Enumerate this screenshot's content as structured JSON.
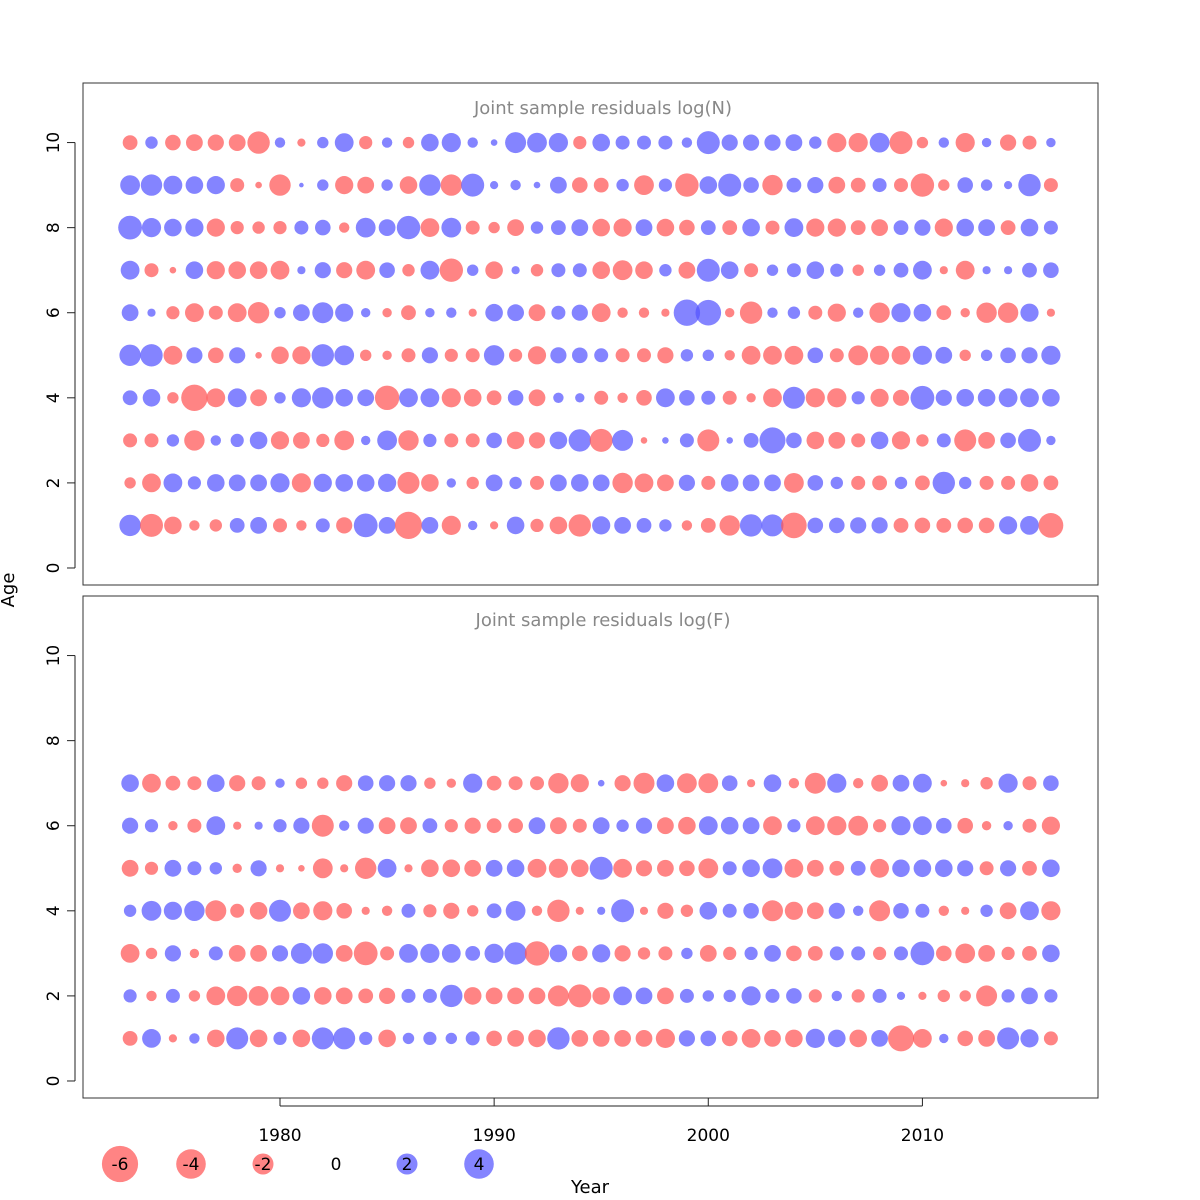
{
  "chart_data": {
    "type": "bubble",
    "xlabel": "Year",
    "ylabel": "Age",
    "x_ticks": [
      1980,
      1990,
      2000,
      2010
    ],
    "xlim": [
      1970.8,
      2018.2
    ],
    "y_ticks": [
      0,
      2,
      4,
      6,
      8,
      10
    ],
    "ylim": [
      -0.4,
      11.4
    ],
    "years": [
      1973,
      1974,
      1975,
      1976,
      1977,
      1978,
      1979,
      1980,
      1981,
      1982,
      1983,
      1984,
      1985,
      1986,
      1987,
      1988,
      1989,
      1990,
      1991,
      1992,
      1993,
      1994,
      1995,
      1996,
      1997,
      1998,
      1999,
      2000,
      2001,
      2002,
      2003,
      2004,
      2005,
      2006,
      2007,
      2008,
      2009,
      2010,
      2011,
      2012,
      2013,
      2014,
      2015,
      2016
    ],
    "colors": {
      "negative": "#ff5555",
      "positive": "#5555ff"
    },
    "legend": {
      "values": [
        -6,
        -4,
        -2,
        0,
        2,
        4
      ],
      "labels": [
        "-6",
        "-4",
        "-2",
        "0",
        "2",
        "4"
      ]
    },
    "panels": [
      {
        "title": "Joint sample residuals log(N)",
        "ages": [
          1,
          2,
          3,
          4,
          5,
          6,
          7,
          8,
          9,
          10
        ],
        "residuals": [
          [
            2.1,
            -2.4,
            -1.4,
            -0.5,
            -0.7,
            1.0,
            1.3,
            -0.9,
            -0.5,
            0.9,
            -1.2,
            2.6,
            1.3,
            -3.4,
            1.3,
            -1.7,
            0.4,
            -0.3,
            1.4,
            -0.8,
            -1.4,
            -2.3,
            1.5,
            1.3,
            1.0,
            0.7,
            -0.5,
            -1.0,
            -1.9,
            2.3,
            2.2,
            -3.0,
            1.1,
            1.1,
            1.2,
            1.2,
            -1.0,
            -1.1,
            -1.0,
            -1.1,
            -1.1,
            1.5,
            1.6,
            -2.8
          ],
          [
            -0.6,
            -1.6,
            1.6,
            0.8,
            1.4,
            1.3,
            1.3,
            1.7,
            -1.7,
            1.5,
            1.4,
            1.4,
            1.5,
            -2.2,
            -1.4,
            0.4,
            -0.7,
            1.3,
            0.7,
            -0.9,
            1.3,
            1.4,
            1.3,
            -1.9,
            -1.6,
            -1.3,
            1.2,
            -0.9,
            1.4,
            1.3,
            1.3,
            -1.8,
            1.1,
            0.7,
            -0.9,
            -1.0,
            0.7,
            -1.0,
            2.3,
            0.7,
            -0.9,
            -0.9,
            -1.4,
            -1.0
          ],
          [
            -0.9,
            -0.9,
            0.7,
            -1.9,
            0.5,
            0.8,
            1.4,
            -1.5,
            -1.3,
            -0.8,
            -1.8,
            0.4,
            1.8,
            -1.9,
            0.8,
            -0.9,
            -0.9,
            1.1,
            -1.4,
            -1.2,
            1.4,
            2.3,
            -2.4,
            2.0,
            -0.2,
            0.2,
            0.9,
            -2.2,
            0.2,
            1.0,
            3.1,
            1.1,
            -1.4,
            -1.3,
            -0.9,
            1.4,
            -1.5,
            -0.7,
            0.9,
            -2.2,
            -1.3,
            1.1,
            2.4,
            0.4
          ],
          [
            1.0,
            1.4,
            -0.6,
            -3.2,
            -1.6,
            1.6,
            -1.3,
            0.6,
            1.7,
            2.1,
            1.4,
            1.3,
            -2.7,
            1.6,
            1.6,
            -1.7,
            -1.4,
            -1.0,
            1.1,
            -1.3,
            0.5,
            0.4,
            -0.9,
            -0.5,
            -1.1,
            1.6,
            1.1,
            0.9,
            -0.9,
            -0.4,
            -1.6,
            2.2,
            -1.7,
            -1.7,
            0.8,
            -1.5,
            -1.2,
            2.6,
            1.2,
            1.4,
            1.4,
            1.6,
            1.6,
            1.4
          ],
          [
            2.1,
            2.3,
            -1.6,
            1.2,
            -1.1,
            1.2,
            -0.2,
            -1.4,
            -1.5,
            2.3,
            1.8,
            -0.6,
            -0.4,
            -0.9,
            1.2,
            -0.8,
            -0.9,
            1.9,
            -0.8,
            -1.5,
            1.2,
            1.1,
            0.9,
            -0.9,
            -0.9,
            -1.2,
            0.7,
            0.6,
            -0.5,
            -1.6,
            -1.6,
            -1.6,
            1.1,
            -0.9,
            -1.8,
            -1.7,
            -1.6,
            1.7,
            1.3,
            -0.6,
            0.6,
            1.1,
            1.2,
            1.7
          ],
          [
            1.3,
            0.3,
            -0.8,
            -1.6,
            -0.9,
            -1.6,
            -2.1,
            0.6,
            1.3,
            2.0,
            1.5,
            0.4,
            -0.4,
            -1.0,
            0.4,
            0.5,
            -0.3,
            1.4,
            1.3,
            -1.3,
            0.9,
            1.2,
            -1.6,
            -0.5,
            -0.5,
            -0.3,
            3.2,
            3.0,
            -0.4,
            -2.3,
            0.5,
            0.7,
            -0.9,
            -1.5,
            0.5,
            -1.9,
            1.7,
            1.4,
            -1.0,
            -0.4,
            -1.9,
            -1.9,
            1.5,
            -0.3
          ],
          [
            1.6,
            -0.9,
            -0.2,
            1.4,
            -1.5,
            -1.4,
            -1.4,
            -1.6,
            0.3,
            1.2,
            -1.2,
            -1.6,
            1.1,
            -0.7,
            1.6,
            -2.5,
            0.6,
            -1.4,
            0.3,
            -0.7,
            0.9,
            0.9,
            -1.4,
            -1.8,
            -1.4,
            0.7,
            -1.3,
            2.4,
            1.4,
            -0.9,
            0.6,
            0.9,
            1.4,
            0.8,
            -0.6,
            0.6,
            1.0,
            1.6,
            -0.3,
            -1.6,
            0.3,
            0.3,
            1.0,
            1.1
          ],
          [
            2.6,
            1.7,
            1.4,
            1.5,
            -1.5,
            -0.8,
            -0.7,
            -0.8,
            0.9,
            1.1,
            -0.5,
            1.8,
            1.3,
            2.5,
            -1.6,
            1.8,
            -0.9,
            -0.6,
            -1.3,
            0.7,
            1.0,
            1.3,
            -1.4,
            -1.5,
            1.3,
            -1.4,
            -1.1,
            1.0,
            -1.0,
            1.4,
            -0.9,
            1.6,
            -1.5,
            -1.5,
            -1.0,
            -1.3,
            1.0,
            1.2,
            -1.5,
            1.4,
            1.3,
            -1.0,
            1.4,
            0.9
          ],
          [
            1.8,
            2.1,
            1.6,
            1.4,
            1.5,
            -0.9,
            -0.2,
            -2.1,
            0.1,
            0.6,
            -1.5,
            -1.3,
            0.6,
            -1.4,
            2.1,
            -2.1,
            2.4,
            0.3,
            0.5,
            0.2,
            1.3,
            -1.1,
            -1.0,
            0.7,
            -1.8,
            0.8,
            -2.5,
            1.4,
            2.4,
            1.1,
            -1.9,
            1.0,
            1.2,
            -1.3,
            -1.0,
            0.9,
            -0.9,
            -2.5,
            -0.6,
            1.1,
            0.6,
            0.3,
            2.3,
            -0.9
          ],
          [
            -1.0,
            0.7,
            -1.1,
            -1.3,
            -1.2,
            -1.3,
            -2.3,
            0.5,
            -0.3,
            0.6,
            1.6,
            -0.8,
            0.5,
            -0.6,
            1.4,
            1.7,
            0.5,
            0.2,
            2.0,
            1.8,
            1.7,
            -0.8,
            1.4,
            0.9,
            0.9,
            0.9,
            0.5,
            2.4,
            1.2,
            1.2,
            1.2,
            1.3,
            0.7,
            -1.7,
            -1.7,
            1.8,
            -2.4,
            -0.6,
            0.5,
            -1.7,
            0.4,
            -1.2,
            -0.9,
            0.4
          ]
        ]
      },
      {
        "title": "Joint sample residuals log(F)",
        "ages": [
          1,
          2,
          3,
          4,
          5,
          6,
          7
        ],
        "residuals": [
          [
            -1.0,
            1.6,
            -0.3,
            0.5,
            -1.4,
            2.2,
            -1.4,
            0.8,
            -1.4,
            2.2,
            2.2,
            0.8,
            -1.4,
            0.6,
            0.8,
            0.6,
            0.9,
            -1.1,
            -1.3,
            -1.4,
            2.3,
            -1.3,
            -1.3,
            -1.3,
            -1.3,
            -1.7,
            1.2,
            1.1,
            -1.1,
            -1.6,
            -1.3,
            -1.4,
            1.7,
            1.4,
            -1.4,
            1.3,
            -3.1,
            -1.6,
            0.4,
            -1.1,
            -1.3,
            2.2,
            1.5,
            -0.9
          ],
          [
            0.8,
            -0.5,
            0.9,
            -0.6,
            -1.6,
            -1.9,
            -1.8,
            -1.6,
            1.4,
            -1.4,
            -1.3,
            -1.0,
            -1.2,
            0.9,
            0.9,
            2.3,
            -1.4,
            -1.3,
            -1.3,
            -1.3,
            -2.0,
            -2.4,
            -1.4,
            1.6,
            1.3,
            -1.3,
            0.9,
            0.6,
            0.7,
            1.7,
            0.9,
            1.1,
            -0.8,
            0.5,
            -0.8,
            0.9,
            0.3,
            -0.3,
            -0.7,
            -0.6,
            -2.0,
            0.8,
            1.3,
            0.8
          ],
          [
            -1.6,
            -0.6,
            1.2,
            -0.4,
            0.9,
            -1.3,
            -1.3,
            1.2,
            2.0,
            1.9,
            -1.3,
            -2.6,
            -0.9,
            1.6,
            1.7,
            1.6,
            1.0,
            1.7,
            2.3,
            -2.7,
            1.4,
            -1.1,
            1.5,
            -1.2,
            -0.7,
            -0.9,
            0.6,
            -1.3,
            -0.8,
            0.8,
            1.3,
            -1.1,
            -1.0,
            0.9,
            0.9,
            -0.8,
            0.9,
            2.6,
            -1.1,
            -1.8,
            -1.3,
            -0.8,
            -1.0,
            1.4
          ],
          [
            0.7,
            1.8,
            1.5,
            1.9,
            -2.0,
            -0.9,
            -1.4,
            2.2,
            -1.3,
            -1.7,
            -1.1,
            -0.3,
            -0.5,
            0.9,
            -0.8,
            -1.2,
            -0.6,
            1.0,
            1.8,
            -0.5,
            -2.3,
            -0.3,
            0.3,
            2.4,
            -0.3,
            -1.2,
            -0.7,
            1.4,
            0.9,
            1.1,
            -2.0,
            -1.5,
            -1.3,
            1.2,
            0.5,
            -2.0,
            1.1,
            0.9,
            -0.5,
            -0.3,
            0.7,
            -1.3,
            1.6,
            -1.7
          ],
          [
            -1.3,
            -0.8,
            1.3,
            0.9,
            0.7,
            -0.4,
            1.2,
            -0.3,
            -0.2,
            -1.8,
            -0.3,
            -2.1,
            1.6,
            -0.3,
            -1.4,
            -1.4,
            -1.3,
            1.3,
            1.4,
            -1.6,
            -1.7,
            -1.4,
            2.4,
            -1.6,
            -1.2,
            -1.3,
            -1.1,
            -1.8,
            0.9,
            1.4,
            1.8,
            -1.6,
            -1.3,
            -1.0,
            1.0,
            -1.6,
            1.4,
            1.4,
            1.4,
            1.2,
            -0.9,
            1.2,
            -1.0,
            1.4
          ],
          [
            1.2,
            0.8,
            -0.4,
            -0.9,
            1.6,
            -0.3,
            0.3,
            0.8,
            1.2,
            -2.2,
            0.5,
            1.2,
            -1.3,
            -1.3,
            1.0,
            -0.8,
            -1.2,
            -1.0,
            -1.0,
            1.3,
            -1.3,
            -0.9,
            1.3,
            0.7,
            1.2,
            -1.3,
            -1.4,
            1.6,
            1.4,
            1.3,
            -1.6,
            0.8,
            -1.6,
            -1.7,
            -1.8,
            -0.8,
            1.7,
            1.6,
            1.1,
            -1.1,
            -0.4,
            0.4,
            -0.9,
            -1.5
          ],
          [
            1.4,
            -1.6,
            -1.0,
            -0.9,
            1.4,
            -1.2,
            -0.9,
            0.4,
            -0.6,
            -0.6,
            -1.2,
            1.1,
            1.2,
            1.2,
            -0.6,
            -0.4,
            1.7,
            -1.0,
            -0.9,
            -0.9,
            -1.9,
            -1.5,
            0.2,
            -1.2,
            -2.0,
            1.4,
            -1.8,
            -1.8,
            1.1,
            -0.3,
            1.4,
            -0.5,
            -2.0,
            1.7,
            -0.5,
            -1.3,
            1.3,
            1.6,
            -0.2,
            -0.3,
            -0.7,
            1.7,
            -0.9,
            1.1
          ]
        ]
      }
    ]
  }
}
